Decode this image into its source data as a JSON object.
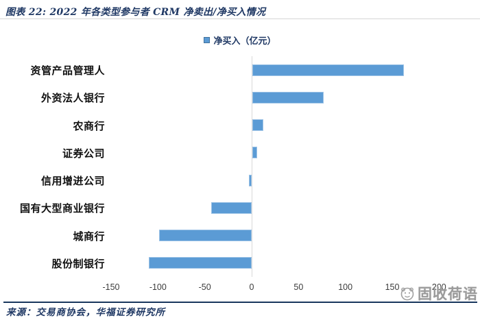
{
  "header": {
    "title": "图表 22:  2022 年各类型参与者 CRM 净卖出/净买入情况"
  },
  "legend": {
    "label": "净买入（亿元）",
    "marker_color": "#5B9BD5"
  },
  "chart_data": {
    "type": "bar",
    "orientation": "horizontal",
    "title": "2022 年各类型参与者 CRM 净卖出/净买入情况",
    "categories": [
      "资管产品管理人",
      "外资法人银行",
      "农商行",
      "证券公司",
      "信用增进公司",
      "国有大型商业银行",
      "城商行",
      "股份制银行"
    ],
    "series": [
      {
        "name": "净买入（亿元）",
        "values": [
          162,
          76,
          12,
          5,
          -3,
          -43,
          -99,
          -110
        ]
      }
    ],
    "xlabel": "",
    "ylabel": "",
    "unit": "亿元",
    "xlim": [
      -150,
      200
    ],
    "xticks": [
      -150,
      -100,
      -50,
      0,
      50,
      100,
      150,
      200
    ],
    "grid": false,
    "legend_position": "top-center",
    "bar_color": "#5B9BD5"
  },
  "footer": {
    "source": "来源：交易商协会，华福证券研究所"
  },
  "watermark": {
    "text": "固收荷语",
    "icon": "panda-face-icon"
  },
  "colors": {
    "bar": "#5B9BD5",
    "bar_border": "#9DC3E6",
    "title_text": "#1F3864",
    "axis_line": "#D9D9D9",
    "footer_rule": "#17365D",
    "watermark_text": "#9B9B9B"
  }
}
